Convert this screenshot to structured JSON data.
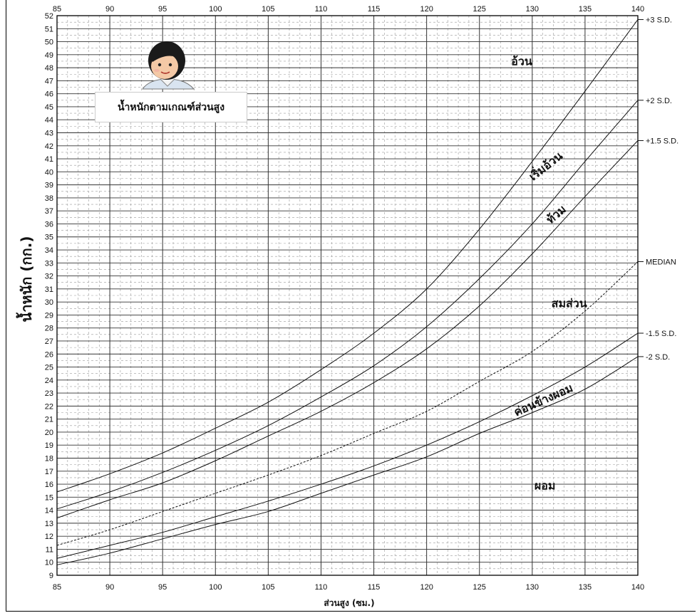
{
  "chart_data": {
    "type": "line",
    "title": "น้ำหนักตามเกณฑ์ส่วนสูง",
    "xlabel": "ส่วนสูง (ซม.)",
    "ylabel": "น้ำหนัก (กก.)",
    "xlim": [
      85,
      140
    ],
    "ylim": [
      9,
      52
    ],
    "x_ticks": [
      85,
      90,
      95,
      100,
      105,
      110,
      115,
      120,
      125,
      130,
      135,
      140
    ],
    "y_ticks": [
      9,
      10,
      11,
      12,
      13,
      14,
      15,
      16,
      17,
      18,
      19,
      20,
      21,
      22,
      23,
      24,
      25,
      26,
      27,
      28,
      29,
      30,
      31,
      32,
      33,
      34,
      35,
      36,
      37,
      38,
      39,
      40,
      41,
      42,
      43,
      44,
      45,
      46,
      47,
      48,
      49,
      50,
      51,
      52
    ],
    "grid": true,
    "x": [
      85,
      90,
      95,
      100,
      105,
      110,
      115,
      120,
      125,
      130,
      135,
      140
    ],
    "series": [
      {
        "name": "+3 S.D.",
        "style": "solid",
        "values": [
          15.4,
          16.8,
          18.4,
          20.3,
          22.3,
          24.8,
          27.6,
          31.0,
          35.6,
          40.8,
          46.2,
          51.7
        ]
      },
      {
        "name": "+2 S.D.",
        "style": "solid",
        "values": [
          14.1,
          15.4,
          16.9,
          18.6,
          20.5,
          22.7,
          25.1,
          28.1,
          31.8,
          36.0,
          40.8,
          45.5
        ]
      },
      {
        "name": "+1.5 S.D.",
        "style": "solid",
        "values": [
          13.4,
          14.8,
          16.1,
          17.8,
          19.7,
          21.6,
          23.8,
          26.4,
          29.7,
          33.7,
          38.1,
          42.4
        ]
      },
      {
        "name": "MEDIAN",
        "style": "dashed",
        "values": [
          11.3,
          12.5,
          13.9,
          15.3,
          16.7,
          18.2,
          19.9,
          21.6,
          23.9,
          26.2,
          29.3,
          33.1
        ]
      },
      {
        "name": "-1.5 S.D.",
        "style": "solid",
        "values": [
          10.3,
          11.3,
          12.3,
          13.5,
          14.7,
          16.0,
          17.4,
          19.0,
          20.8,
          22.8,
          25.0,
          27.6
        ]
      },
      {
        "name": "-2 S.D.",
        "style": "solid",
        "values": [
          9.8,
          10.7,
          11.8,
          12.9,
          13.9,
          15.3,
          16.7,
          18.1,
          19.9,
          21.5,
          23.3,
          25.8
        ]
      }
    ],
    "zones": [
      {
        "label": "อ้วน",
        "x": 129,
        "y": 48.2,
        "rotate": 0
      },
      {
        "label": "เริ่มอ้วน",
        "x": 131.5,
        "y": 40.2,
        "rotate": -38
      },
      {
        "label": "ท้วม",
        "x": 132.5,
        "y": 36.5,
        "rotate": -40
      },
      {
        "label": "สมส่วน",
        "x": 133.5,
        "y": 29.6,
        "rotate": 0
      },
      {
        "label": "ค่อนข้างผอม",
        "x": 131.2,
        "y": 22.2,
        "rotate": -24
      },
      {
        "label": "ผอม",
        "x": 131.2,
        "y": 15.6,
        "rotate": 0
      }
    ]
  }
}
